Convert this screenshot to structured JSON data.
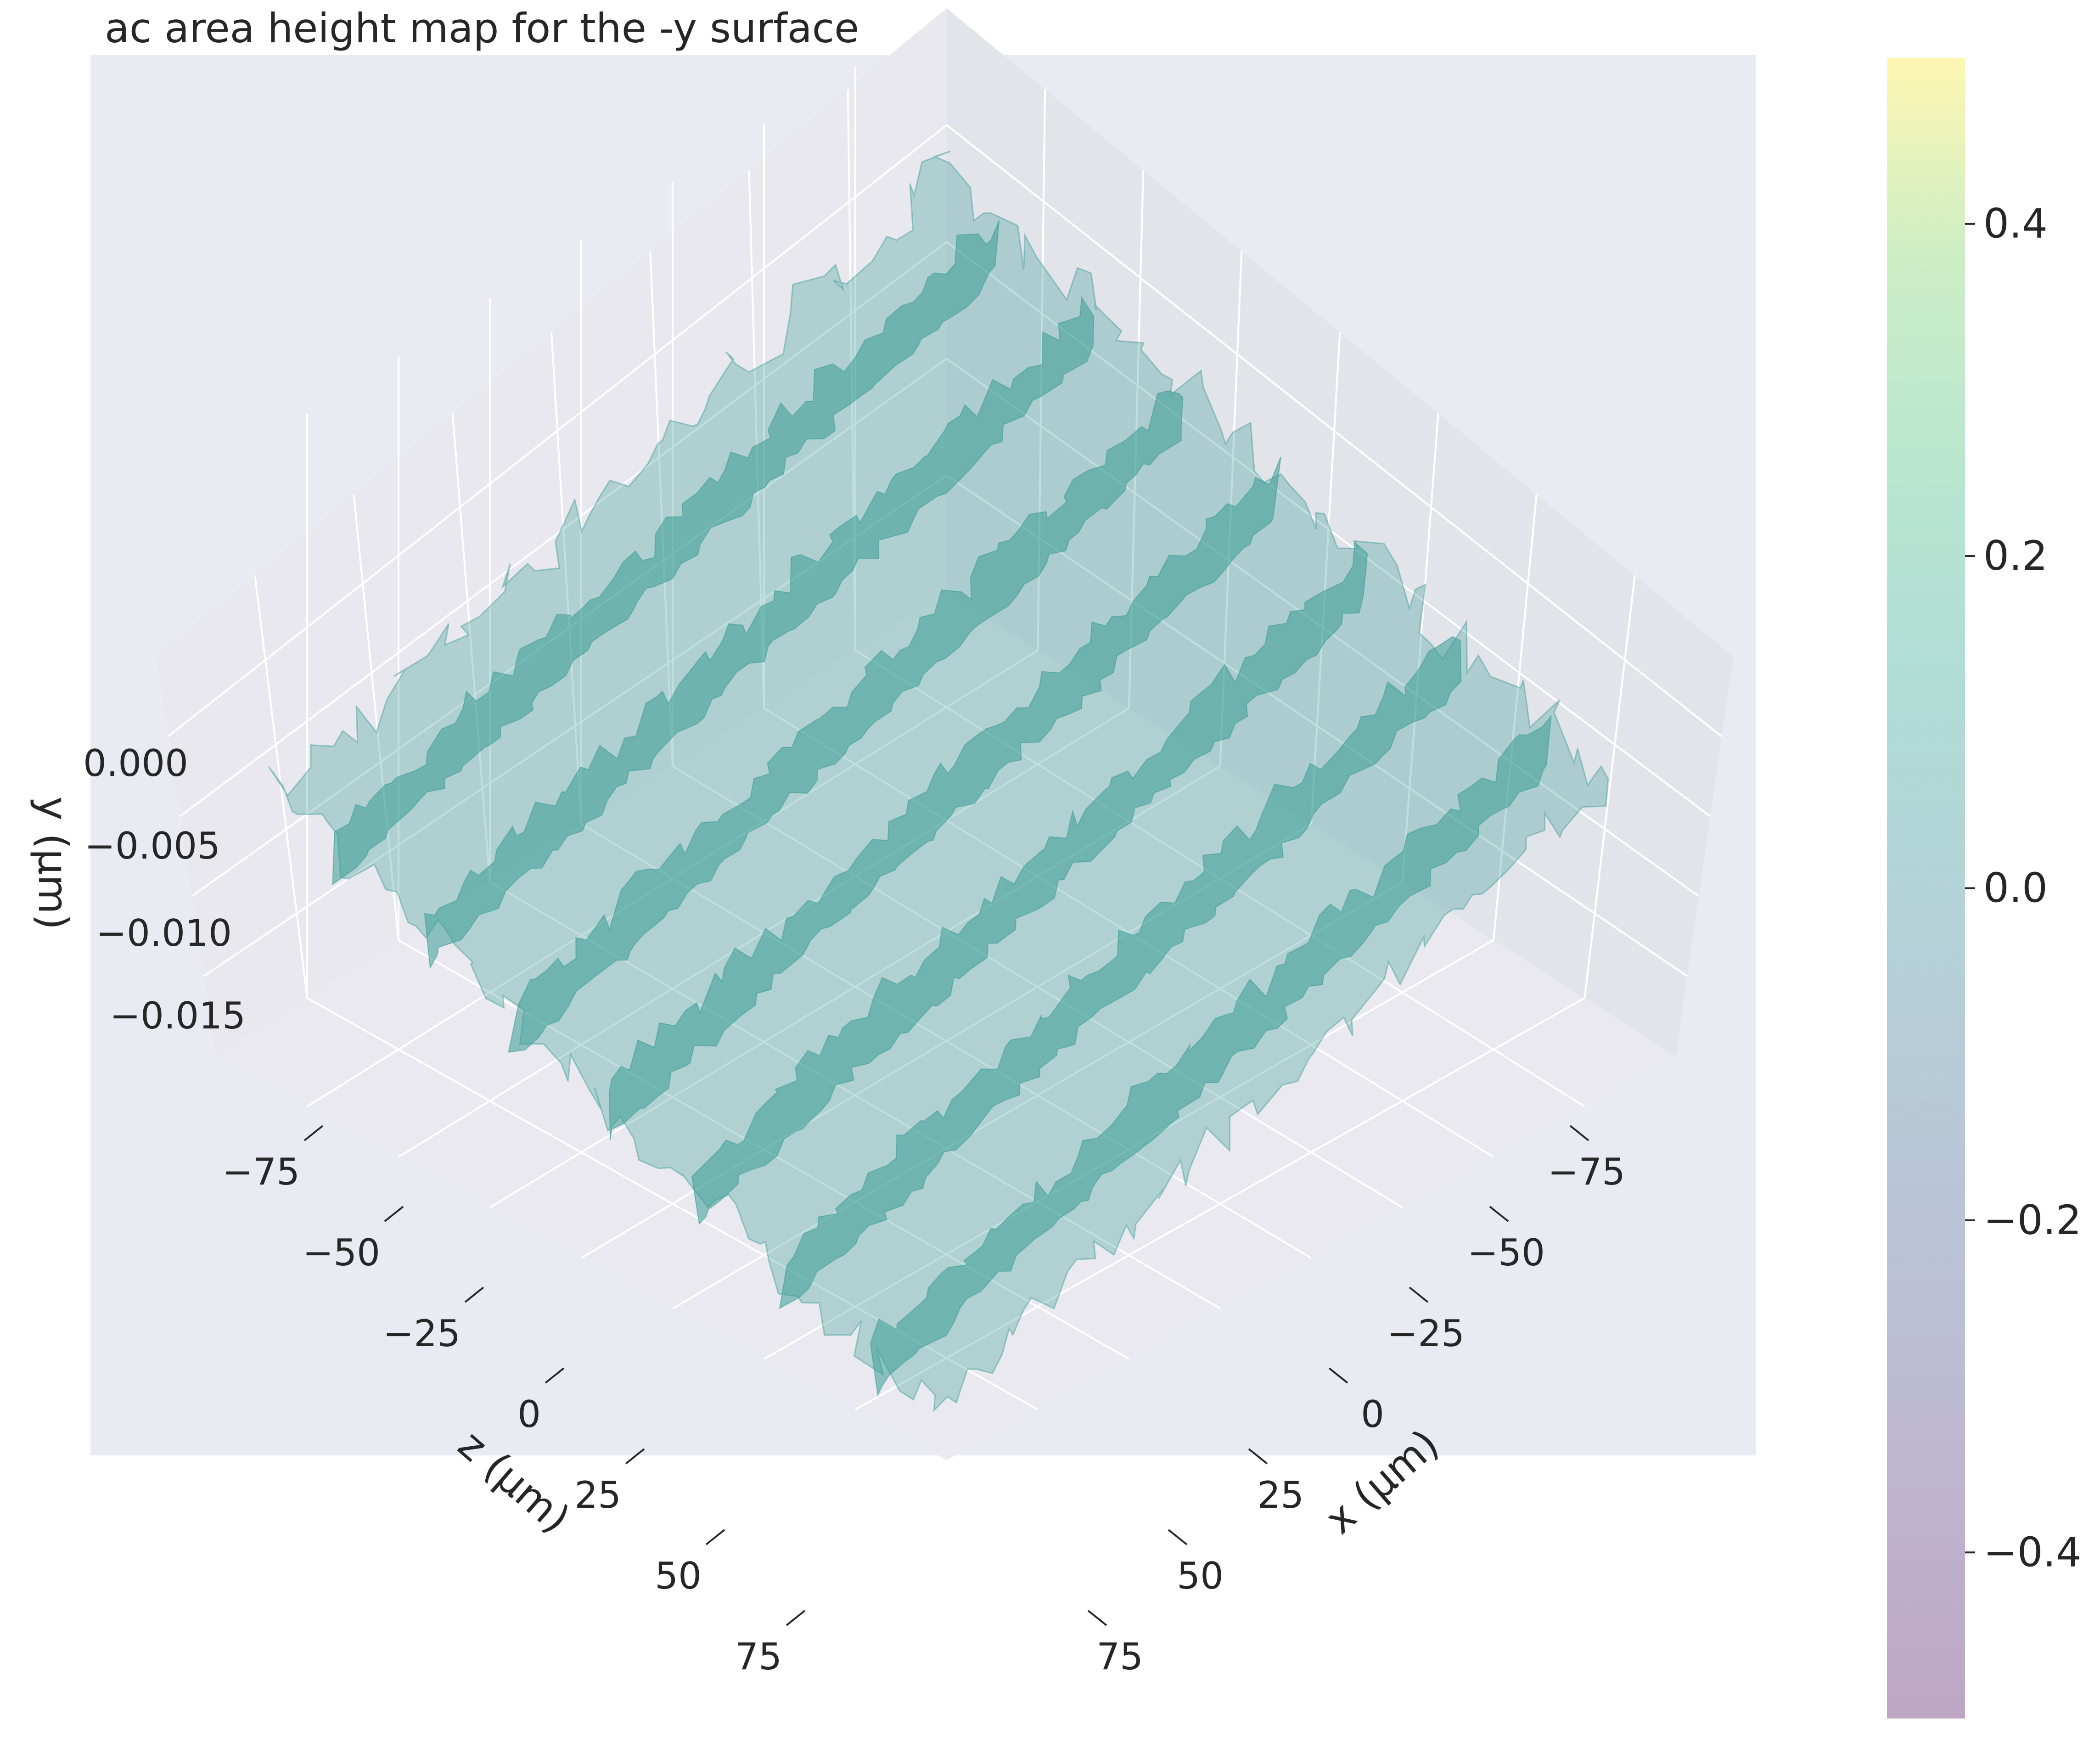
{
  "chart_data": {
    "type": "surface",
    "title": "ac area height map for the -y surface",
    "axes": {
      "x": {
        "label": "x (µm)",
        "ticks": [
          "−75",
          "−50",
          "−25",
          "0",
          "25",
          "50",
          "75"
        ],
        "range": [
          -100,
          100
        ]
      },
      "z": {
        "label": "z (µm)",
        "ticks": [
          "−75",
          "−50",
          "−25",
          "0",
          "25",
          "50",
          "75"
        ],
        "range": [
          -100,
          100
        ]
      },
      "y": {
        "label": "y (µm)",
        "ticks": [
          "0.000",
          "−0.005",
          "−0.010",
          "−0.015"
        ],
        "range": [
          -0.02,
          0.002
        ]
      }
    },
    "colorbar": {
      "colormap": "viridis",
      "alpha": 0.35,
      "range": [
        -0.5,
        0.5
      ],
      "ticks": [
        "0.4",
        "0.2",
        "0.0",
        "−0.2",
        "−0.4"
      ]
    },
    "surface": {
      "description": "rough wavy surface with diagonal ridges",
      "color": "#3a9c96",
      "ridge_count": 7
    },
    "style": {
      "figure_bg": "#ffffff",
      "axes_bg": "#eaeaf2",
      "pane_left": "#e8e8ee",
      "pane_right": "#e3e3ea",
      "floor": "#e9e9ef",
      "grid": "#ffffff"
    }
  }
}
